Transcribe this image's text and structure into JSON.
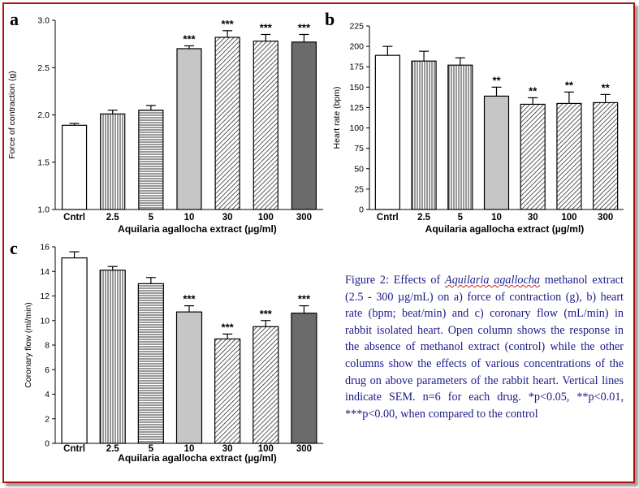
{
  "colors": {
    "border": "#b01010",
    "caption": "#1a1a8a",
    "bar_stroke": "#000000"
  },
  "chart_data": [
    {
      "type": "bar",
      "panel": "a",
      "title": "",
      "categories": [
        "Cntrl",
        "2.5",
        "5",
        "10",
        "30",
        "100",
        "300"
      ],
      "values": [
        1.89,
        2.01,
        2.05,
        2.7,
        2.82,
        2.78,
        2.77
      ],
      "errors": [
        0.02,
        0.04,
        0.05,
        0.03,
        0.07,
        0.07,
        0.08
      ],
      "significance": [
        "",
        "",
        "",
        "***",
        "***",
        "***",
        "***"
      ],
      "fills": [
        "white",
        "vertical",
        "horizontal",
        "lightgray",
        "diagonal",
        "diagonal",
        "darkgray"
      ],
      "xlabel": "Aquilaria agallocha extract (µg/ml)",
      "ylabel": "Force of contraction (g)",
      "ylim": [
        1.0,
        3.0
      ],
      "yticks": [
        1.0,
        1.5,
        2.0,
        2.5,
        3.0
      ],
      "ytick_labels": [
        "1.0",
        "1.5",
        "2.0",
        "2.5",
        "3.0"
      ]
    },
    {
      "type": "bar",
      "panel": "b",
      "title": "",
      "categories": [
        "Cntrl",
        "2.5",
        "5",
        "10",
        "30",
        "100",
        "300"
      ],
      "values": [
        189,
        182,
        177,
        139,
        129,
        130,
        131
      ],
      "errors": [
        11,
        12,
        9,
        11,
        8,
        14,
        10
      ],
      "significance": [
        "",
        "",
        "",
        "**",
        "**",
        "**",
        "**"
      ],
      "fills": [
        "white",
        "vertical",
        "vertical",
        "lightgray",
        "diagonal",
        "diagonal",
        "diagonal"
      ],
      "xlabel": "Aquilaria agallocha extract (µg/ml)",
      "ylabel": "Heart rate (bpm)",
      "ylim": [
        0,
        225
      ],
      "yticks": [
        0,
        25,
        50,
        75,
        100,
        125,
        150,
        175,
        200,
        225
      ],
      "ytick_labels": [
        "0",
        "25",
        "50",
        "75",
        "100",
        "125",
        "150",
        "175",
        "200",
        "225"
      ]
    },
    {
      "type": "bar",
      "panel": "c",
      "title": "",
      "categories": [
        "Cntrl",
        "2.5",
        "5",
        "10",
        "30",
        "100",
        "300"
      ],
      "values": [
        15.1,
        14.1,
        13.0,
        10.7,
        8.5,
        9.5,
        10.6
      ],
      "errors": [
        0.5,
        0.3,
        0.5,
        0.5,
        0.4,
        0.5,
        0.6
      ],
      "significance": [
        "",
        "",
        "",
        "***",
        "***",
        "***",
        "***"
      ],
      "fills": [
        "white",
        "vertical",
        "horizontal",
        "lightgray",
        "diagonal",
        "diagonal",
        "darkgray"
      ],
      "xlabel": "Aquilaria agallocha extract (µg/ml)",
      "ylabel": "Coronary flow (ml/min)",
      "ylim": [
        0,
        16
      ],
      "yticks": [
        0,
        2,
        4,
        6,
        8,
        10,
        12,
        14,
        16
      ],
      "ytick_labels": [
        "0",
        "2",
        "4",
        "6",
        "8",
        "10",
        "12",
        "14",
        "16"
      ]
    }
  ],
  "caption": {
    "part1": "Figure 2: Effects of ",
    "species": "Aquilaria agallocha",
    "part2": " methanol extract (2.5 - 300 µg/mL) on a) force of contraction (g), b) heart rate (bpm; beat/min) and c) coronary flow (mL/min) in rabbit isolated heart. Open column shows the response in the absence of methanol extract (control) while the other columns show the effects of various concentrations of the drug on above parameters of the rabbit heart. Vertical lines indicate SEM. n=6 for each drug. *p<0.05, **p<0.01, ***p<0.00, when compared to the control"
  }
}
